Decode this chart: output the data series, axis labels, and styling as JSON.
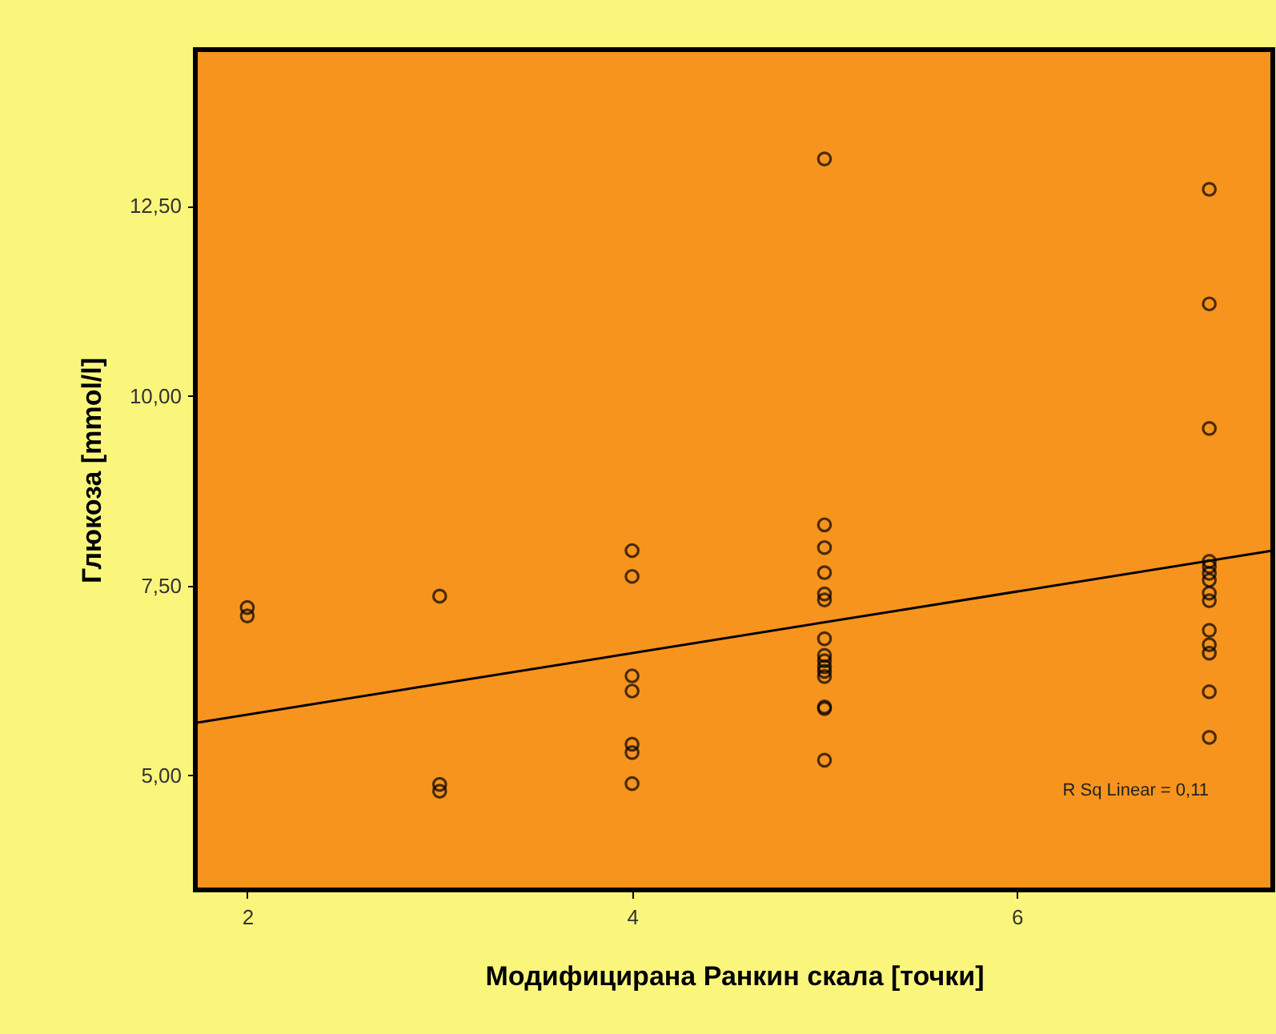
{
  "chart_data": {
    "type": "scatter",
    "xlabel": "Модифицирана Ранкин скала [точки]",
    "ylabel": "Глюкоза [mmol/l]",
    "xlim": [
      1.73,
      7.33
    ],
    "xticks": [
      2,
      4,
      6
    ],
    "ylim": [
      3.49,
      14.56
    ],
    "yticks": [
      {
        "value": 5,
        "label": "5,00"
      },
      {
        "value": 7.5,
        "label": "7,50"
      },
      {
        "value": 10,
        "label": "10,00"
      },
      {
        "value": 12.5,
        "label": "12,50"
      }
    ],
    "grid": false,
    "annotations": [
      "R Sq Linear = 0,11"
    ],
    "series": [
      {
        "marker": "circle",
        "color": "#000000",
        "x": [
          2,
          2,
          3,
          3,
          3,
          4,
          4,
          4,
          4,
          4,
          4,
          4,
          5,
          5,
          5,
          5,
          5,
          5,
          5,
          5,
          5,
          5,
          5,
          5,
          5,
          5,
          5,
          7,
          7,
          7,
          7,
          7,
          7,
          7,
          7,
          7,
          7,
          7,
          7,
          7,
          7
        ],
        "values": [
          7.21,
          7.1,
          7.36,
          4.88,
          4.79,
          7.96,
          7.62,
          6.31,
          6.11,
          5.41,
          5.3,
          4.89,
          13.12,
          8.3,
          8.0,
          7.67,
          7.39,
          7.31,
          6.8,
          6.58,
          6.51,
          6.43,
          6.37,
          6.3,
          5.9,
          5.88,
          5.2,
          12.72,
          11.21,
          9.57,
          7.82,
          7.75,
          7.66,
          7.57,
          7.4,
          7.3,
          6.91,
          6.72,
          6.61,
          6.1,
          5.5
        ]
      },
      {
        "type": "line",
        "color": "#000000",
        "x": [
          1.73,
          7.33
        ],
        "values": [
          5.69,
          7.96
        ]
      }
    ]
  }
}
